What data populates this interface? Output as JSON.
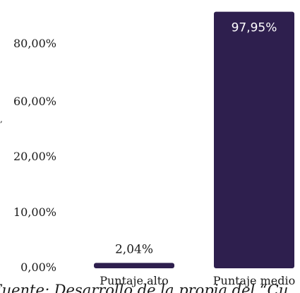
{
  "chart_data": {
    "type": "bar",
    "categories": [
      "Puntaje alto",
      "Puntaje medio"
    ],
    "values": [
      2.04,
      97.95
    ],
    "data_labels": [
      "2,04%",
      "97,95%"
    ],
    "y_tick_labels": [
      "0,00%",
      "10,00%",
      "20,00%",
      "60,00%",
      "80,00%"
    ],
    "title": "",
    "xlabel": "",
    "ylabel": "",
    "ylim": [
      0,
      100
    ],
    "grid": false,
    "legend": "none",
    "bar_color": "#2e1f4e"
  },
  "caption_fragment": "Fuente: Desarrollo de la propia del “Cu",
  "stray_mark": ","
}
